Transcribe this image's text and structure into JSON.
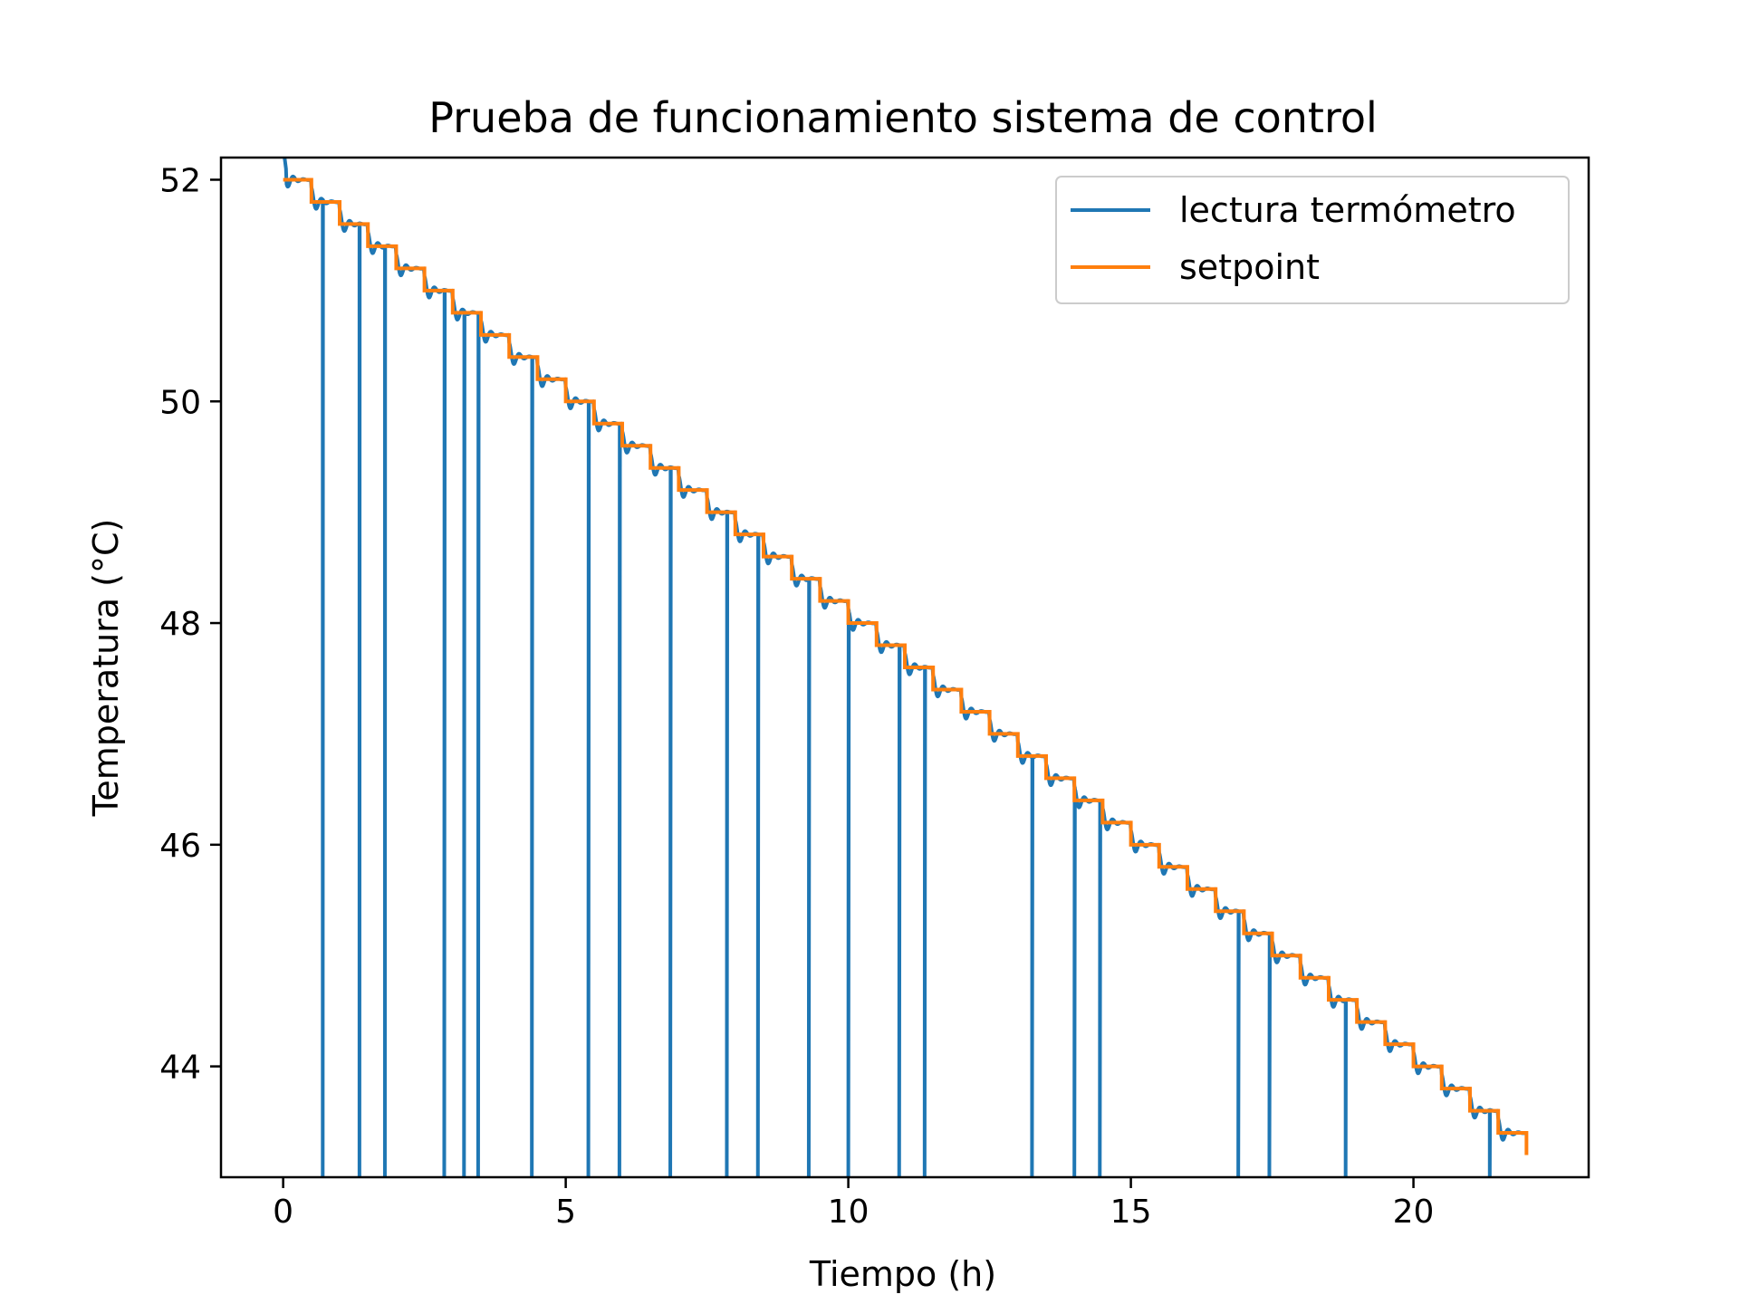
{
  "chart_data": {
    "type": "line",
    "title": "Prueba de funcionamiento sistema de control",
    "xlabel": "Tiempo (h)",
    "ylabel": "Temperatura (°C)",
    "xlim": [
      -1.1,
      23.1
    ],
    "ylim": [
      43.0,
      52.2
    ],
    "xticks": [
      0,
      5,
      10,
      15,
      20
    ],
    "yticks": [
      44,
      46,
      48,
      50,
      52
    ],
    "grid": false,
    "legend_position": "top-right",
    "setpoint": {
      "start": 52.0,
      "step": -0.2,
      "step_every_h": 0.5,
      "end_time": 22.0,
      "final_value": 43.2
    },
    "series": [
      {
        "name": "lectura termómetro",
        "color": "#1f77b4"
      },
      {
        "name": "setpoint",
        "color": "#ff7f0e"
      }
    ],
    "dropouts": {
      "times": [
        0.7,
        1.35,
        1.8,
        2.85,
        3.2,
        3.45,
        4.4,
        5.4,
        5.95,
        6.85,
        7.85,
        8.4,
        9.3,
        10.0,
        10.9,
        11.35,
        13.25,
        14.0,
        14.45,
        16.9,
        17.45,
        18.8,
        21.35
      ],
      "value": 43.0
    }
  }
}
